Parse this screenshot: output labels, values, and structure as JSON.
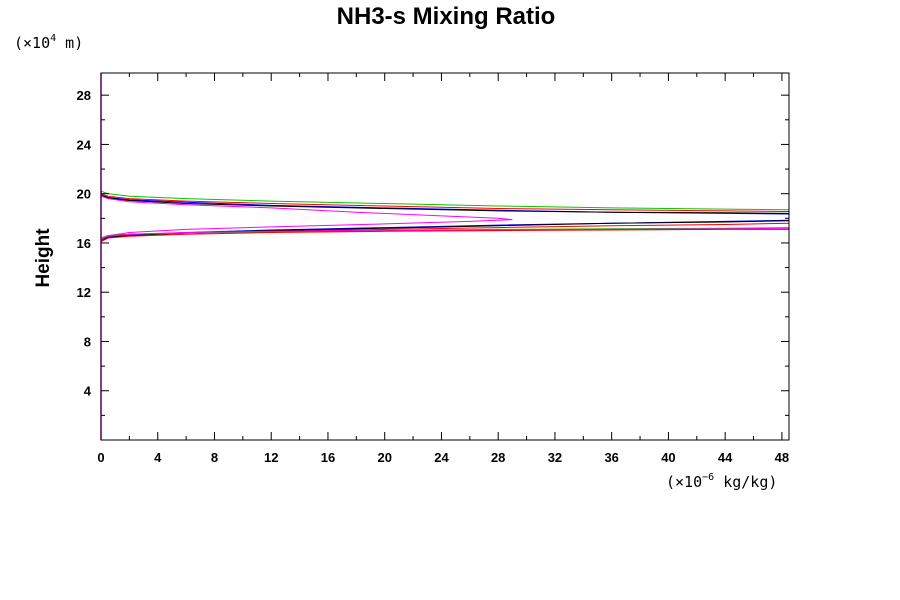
{
  "chart_data": {
    "type": "line",
    "title": "NH3-s Mixing Ratio",
    "ylabel": "Height",
    "y_unit": {
      "prefix": "(×10",
      "exp": "4",
      "suffix": " m)"
    },
    "x_unit": {
      "prefix": "(×10",
      "exp": "−6",
      "suffix": " kg/kg)"
    },
    "xlim": [
      0,
      48.5
    ],
    "ylim": [
      0,
      29.8
    ],
    "xticks": [
      0,
      4,
      8,
      12,
      16,
      20,
      24,
      28,
      32,
      36,
      40,
      44,
      48
    ],
    "yticks": [
      4,
      8,
      12,
      16,
      20,
      24,
      28
    ],
    "grid": false,
    "series": [
      {
        "color": "#00c800",
        "points": [
          [
            0,
            20.2
          ],
          [
            0.5,
            20.0
          ],
          [
            2,
            19.8
          ],
          [
            6,
            19.6
          ],
          [
            12,
            19.4
          ],
          [
            20,
            19.2
          ],
          [
            28,
            19.0
          ],
          [
            36,
            18.85
          ],
          [
            44,
            18.75
          ],
          [
            48.5,
            18.7
          ]
        ]
      },
      {
        "color": "#ff0000",
        "points": [
          [
            0,
            20.0
          ],
          [
            0.5,
            19.8
          ],
          [
            2,
            19.6
          ],
          [
            6,
            19.4
          ],
          [
            12,
            19.2
          ],
          [
            20,
            19.0
          ],
          [
            28,
            18.8
          ],
          [
            36,
            18.7
          ],
          [
            44,
            18.6
          ],
          [
            48.5,
            18.55
          ]
        ]
      },
      {
        "color": "#0000ff",
        "points": [
          [
            0,
            19.9
          ],
          [
            0.5,
            19.7
          ],
          [
            2,
            19.5
          ],
          [
            6,
            19.3
          ],
          [
            12,
            19.05
          ],
          [
            20,
            18.85
          ],
          [
            28,
            18.65
          ],
          [
            36,
            18.5
          ],
          [
            44,
            18.4
          ],
          [
            48.5,
            18.35
          ]
        ]
      },
      {
        "color": "#000000",
        "points": [
          [
            0,
            19.9
          ],
          [
            0.5,
            19.65
          ],
          [
            2,
            19.45
          ],
          [
            6,
            19.2
          ],
          [
            12,
            19.0
          ],
          [
            20,
            18.8
          ],
          [
            28,
            18.6
          ],
          [
            36,
            18.5
          ],
          [
            44,
            18.45
          ],
          [
            48.5,
            18.4
          ]
        ]
      },
      {
        "color": "#ff00ff",
        "points": [
          [
            0,
            19.8
          ],
          [
            0.5,
            19.6
          ],
          [
            2,
            19.35
          ],
          [
            6,
            19.1
          ],
          [
            12,
            18.85
          ],
          [
            18,
            18.5
          ],
          [
            24,
            18.2
          ],
          [
            28,
            18.0
          ],
          [
            29,
            17.9
          ],
          [
            26,
            17.75
          ],
          [
            20,
            17.55
          ],
          [
            12,
            17.3
          ],
          [
            6,
            17.1
          ],
          [
            2,
            16.85
          ],
          [
            0.5,
            16.6
          ],
          [
            0,
            16.4
          ]
        ]
      },
      {
        "color": "#ff0000",
        "points": [
          [
            0,
            16.4
          ],
          [
            0.5,
            16.6
          ],
          [
            2,
            16.7
          ],
          [
            6,
            16.8
          ],
          [
            12,
            16.95
          ],
          [
            20,
            17.1
          ],
          [
            28,
            17.25
          ],
          [
            36,
            17.4
          ],
          [
            44,
            17.5
          ],
          [
            48.5,
            17.6
          ]
        ]
      },
      {
        "color": "#0000ff",
        "points": [
          [
            0,
            16.3
          ],
          [
            0.5,
            16.5
          ],
          [
            2,
            16.65
          ],
          [
            6,
            16.85
          ],
          [
            12,
            17.05
          ],
          [
            20,
            17.25
          ],
          [
            28,
            17.45
          ],
          [
            36,
            17.6
          ],
          [
            44,
            17.75
          ],
          [
            48.5,
            17.85
          ]
        ]
      },
      {
        "color": "#000000",
        "points": [
          [
            0,
            16.2
          ],
          [
            0.5,
            16.45
          ],
          [
            2,
            16.6
          ],
          [
            6,
            16.8
          ],
          [
            12,
            17.0
          ],
          [
            20,
            17.2
          ],
          [
            28,
            17.4
          ],
          [
            36,
            17.6
          ],
          [
            44,
            17.7
          ],
          [
            48.5,
            17.8
          ]
        ]
      },
      {
        "color": "#00c800",
        "points": [
          [
            0,
            16.4
          ],
          [
            0.5,
            16.6
          ],
          [
            2,
            16.7
          ],
          [
            6,
            16.8
          ],
          [
            12,
            16.9
          ],
          [
            20,
            17.0
          ],
          [
            28,
            17.1
          ],
          [
            36,
            17.15
          ],
          [
            44,
            17.2
          ],
          [
            48.5,
            17.25
          ]
        ]
      },
      {
        "color": "#ff00ff",
        "points": [
          [
            0,
            16.3
          ],
          [
            0.5,
            16.55
          ],
          [
            2,
            16.7
          ],
          [
            6,
            16.85
          ],
          [
            12,
            16.95
          ],
          [
            20,
            17.0
          ],
          [
            28,
            17.05
          ],
          [
            36,
            17.1
          ],
          [
            44,
            17.15
          ],
          [
            48.5,
            17.2
          ]
        ]
      },
      {
        "color": "#ff0000",
        "points": [
          [
            0,
            16.1
          ],
          [
            0.5,
            16.4
          ],
          [
            2,
            16.55
          ],
          [
            6,
            16.7
          ],
          [
            12,
            16.85
          ],
          [
            20,
            16.95
          ],
          [
            28,
            17.0
          ],
          [
            36,
            17.05
          ],
          [
            44,
            17.1
          ],
          [
            48.5,
            17.1
          ]
        ]
      }
    ]
  }
}
